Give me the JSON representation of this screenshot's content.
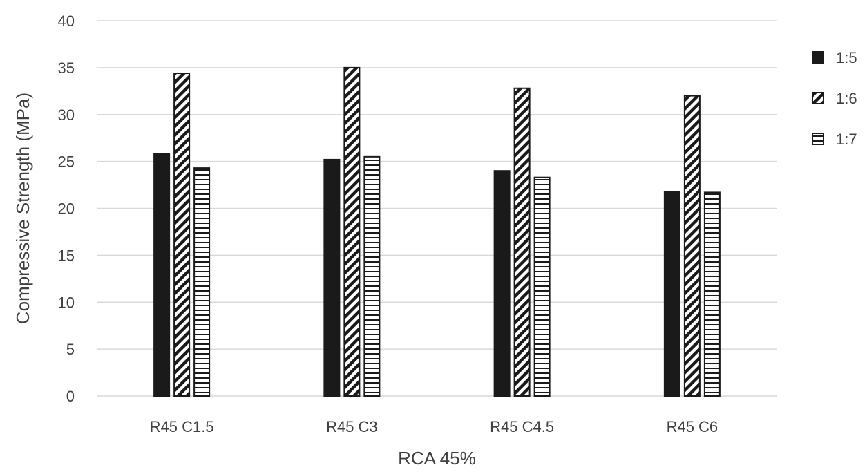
{
  "chart_data": {
    "type": "bar",
    "categories": [
      "R45 C1.5",
      "R45 C3",
      "R45 C4.5",
      "R45 C6"
    ],
    "series": [
      {
        "name": "1:5",
        "values": [
          25.8,
          25.2,
          24.0,
          21.8
        ],
        "pattern": "solid"
      },
      {
        "name": "1:6",
        "values": [
          34.4,
          35.0,
          32.8,
          32.0
        ],
        "pattern": "diagonal"
      },
      {
        "name": "1:7",
        "values": [
          24.3,
          25.5,
          23.3,
          21.7
        ],
        "pattern": "horizontal"
      }
    ],
    "yticks": [
      "0",
      "5",
      "10",
      "15",
      "20",
      "25",
      "30",
      "35",
      "40"
    ],
    "title": "",
    "xlabel": "RCA 45%",
    "ylabel": "Compressive Strength (MPa)",
    "ylim": [
      0,
      40
    ],
    "grid": true,
    "legend_position": "right",
    "colors": {
      "bar": "#1a1a1a",
      "grid": "#d9d9d9",
      "text": "#404040"
    }
  }
}
